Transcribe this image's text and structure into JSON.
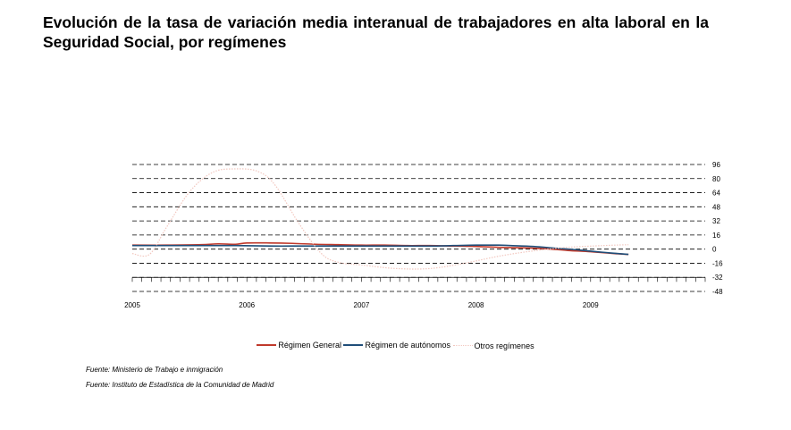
{
  "title": "Evolución de la tasa de variación media interanual de trabajadores en alta laboral en la Seguridad Social, por  regímenes",
  "sources": [
    "Fuente: Ministerio de Trabajo e inmigración",
    "Fuente: Instituto de Estadística de la Comunidad de Madrid"
  ],
  "colors": {
    "general": "#c0392b",
    "autonomos": "#1f4e79",
    "otros": "#f2c7bf",
    "grid": "#000000"
  },
  "chart_data": {
    "type": "line",
    "x_ticks": [
      "2005",
      "2006",
      "2007",
      "2008",
      "2009"
    ],
    "y_ticks": [
      96,
      80,
      64,
      48,
      32,
      16,
      0,
      -16,
      -32,
      -48
    ],
    "ylim": [
      -48,
      96
    ],
    "xlim": [
      2005,
      2010
    ],
    "grid": true,
    "legend_position": "bottom",
    "series": [
      {
        "name": "Régimen General",
        "key": "general",
        "x": [
          2005.0,
          2005.3,
          2005.6,
          2005.75,
          2005.9,
          2006.0,
          2006.2,
          2006.4,
          2006.6,
          2006.8,
          2007.0,
          2007.2,
          2007.4,
          2007.6,
          2007.8,
          2008.0,
          2008.2,
          2008.4,
          2008.6,
          2008.8,
          2009.0,
          2009.2,
          2009.33
        ],
        "y": [
          4.5,
          4.5,
          5,
          6,
          5.5,
          7,
          7,
          6.5,
          5.5,
          5,
          4.5,
          4.5,
          4,
          4,
          3.5,
          3,
          2,
          1.5,
          0.5,
          -1.5,
          -3,
          -5,
          -6
        ]
      },
      {
        "name": "Régimen de autónomos",
        "key": "autonomos",
        "x": [
          2005.0,
          2005.3,
          2005.6,
          2005.9,
          2006.2,
          2006.5,
          2006.8,
          2007.0,
          2007.3,
          2007.6,
          2007.8,
          2008.0,
          2008.2,
          2008.3,
          2008.5,
          2008.7,
          2008.9,
          2009.1,
          2009.33
        ],
        "y": [
          4,
          4,
          4,
          4,
          3.5,
          3.5,
          3.5,
          3.5,
          3.5,
          3.5,
          4,
          4.5,
          4.5,
          4,
          3,
          1,
          -1,
          -3.5,
          -6
        ]
      },
      {
        "name": "Otros regímenes",
        "key": "otros",
        "x": [
          2005.0,
          2005.15,
          2005.3,
          2005.5,
          2005.7,
          2005.9,
          2006.1,
          2006.25,
          2006.45,
          2006.65,
          2006.8,
          2007.0,
          2007.3,
          2007.6,
          2007.9,
          2008.2,
          2008.5,
          2008.8,
          2009.1,
          2009.33
        ],
        "y": [
          -5,
          -6,
          25,
          65,
          87,
          91,
          88,
          72,
          30,
          -5,
          -15,
          -18,
          -22,
          -22,
          -16,
          -8,
          -2,
          2,
          4,
          5
        ]
      }
    ]
  }
}
